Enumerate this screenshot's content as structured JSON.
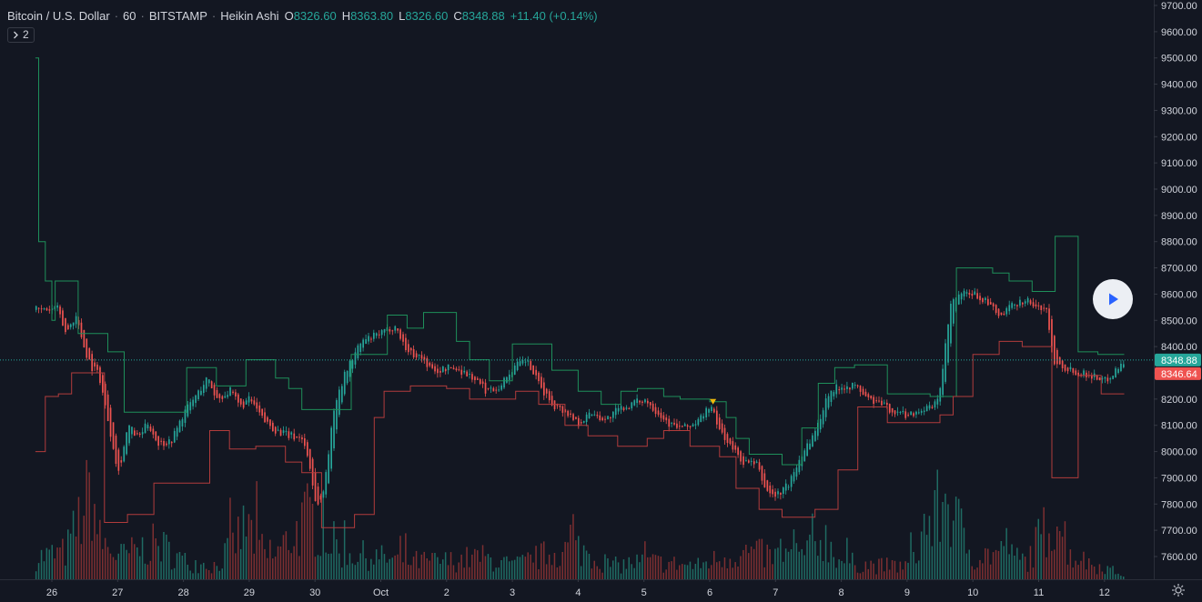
{
  "legend": {
    "symbol": "Bitcoin / U.S. Dollar",
    "interval": "60",
    "exchange": "BITSTAMP",
    "chart_style": "Heikin Ashi",
    "open_key": "O",
    "open": "8326.60",
    "high_key": "H",
    "high": "8363.80",
    "low_key": "L",
    "low": "8326.60",
    "close_key": "C",
    "close": "8348.88",
    "change": "+11.40 (+0.14%)"
  },
  "indicators": {
    "count": "2"
  },
  "icons": {
    "collapse": "chevron-right-icon",
    "play": "play-icon",
    "settings": "settings-icon"
  },
  "colors": {
    "background": "#131722",
    "up": "#26a69a",
    "down": "#ef5350",
    "upper_band": "#1e8f5a",
    "lower_band": "#b23c3c",
    "vol_up": "#1f6b63",
    "vol_down": "#7d2f31",
    "axis_text": "#d1d4dc",
    "marker": "#f0b90b"
  },
  "chart_data": {
    "type": "candlestick",
    "xaxis": {
      "ticks": [
        "26",
        "27",
        "28",
        "29",
        "30",
        "Oct",
        "2",
        "3",
        "4",
        "5",
        "6",
        "7",
        "8",
        "9",
        "10",
        "11",
        "12"
      ]
    },
    "yaxis": {
      "ticks": [
        "9700.00",
        "9600.00",
        "9500.00",
        "9400.00",
        "9300.00",
        "9200.00",
        "9100.00",
        "9000.00",
        "8900.00",
        "8800.00",
        "8700.00",
        "8600.00",
        "8500.00",
        "8400.00",
        "8300.00",
        "8200.00",
        "8100.00",
        "8000.00",
        "7900.00",
        "7800.00",
        "7700.00",
        "7600.00"
      ],
      "range": [
        7555,
        9705
      ]
    },
    "last_price": "8348.88",
    "indicator_price": "8346.64",
    "series": [
      {
        "style": "heikin-ashi",
        "anchors": [
          [
            "26",
            8540
          ],
          [
            26.05,
            8560
          ],
          [
            26.2,
            8450
          ],
          [
            26.35,
            8520
          ],
          [
            26.5,
            8380
          ],
          [
            26.6,
            8320
          ],
          [
            26.7,
            8300
          ],
          [
            "27",
            7920
          ],
          [
            27.15,
            8100
          ],
          [
            27.3,
            8050
          ],
          [
            27.45,
            8110
          ],
          [
            27.6,
            8030
          ],
          [
            27.8,
            8040
          ],
          [
            "28",
            8150
          ],
          [
            28.2,
            8220
          ],
          [
            28.35,
            8280
          ],
          [
            28.5,
            8200
          ],
          [
            28.7,
            8230
          ],
          [
            28.85,
            8170
          ],
          [
            "29",
            8200
          ],
          [
            29.2,
            8120
          ],
          [
            29.4,
            8080
          ],
          [
            29.6,
            8060
          ],
          [
            29.8,
            8050
          ],
          [
            29.9,
            7960
          ],
          [
            "30",
            7800
          ],
          [
            30.1,
            7820
          ],
          [
            30.3,
            8200
          ],
          [
            30.5,
            8330
          ],
          [
            30.7,
            8420
          ],
          [
            "Oct",
            8450
          ],
          [
            31.2,
            8480
          ],
          [
            31.4,
            8380
          ],
          [
            31.6,
            8360
          ],
          [
            31.8,
            8300
          ],
          [
            "2",
            8320
          ],
          [
            32.2,
            8310
          ],
          [
            32.4,
            8280
          ],
          [
            32.6,
            8230
          ],
          [
            32.8,
            8250
          ],
          [
            "3",
            8320
          ],
          [
            33.2,
            8350
          ],
          [
            33.4,
            8250
          ],
          [
            33.6,
            8180
          ],
          [
            33.8,
            8150
          ],
          [
            "4",
            8110
          ],
          [
            34.2,
            8150
          ],
          [
            34.4,
            8120
          ],
          [
            34.6,
            8160
          ],
          [
            34.8,
            8180
          ],
          [
            "5",
            8200
          ],
          [
            35.2,
            8150
          ],
          [
            35.4,
            8100
          ],
          [
            35.6,
            8090
          ],
          [
            35.8,
            8110
          ],
          [
            "6",
            8180
          ],
          [
            36.1,
            8100
          ],
          [
            36.3,
            8020
          ],
          [
            36.5,
            7960
          ],
          [
            36.7,
            7950
          ],
          [
            36.85,
            7850
          ],
          [
            "7",
            7830
          ],
          [
            37.2,
            7880
          ],
          [
            37.4,
            8000
          ],
          [
            37.6,
            8080
          ],
          [
            37.8,
            8230
          ],
          [
            "8",
            8250
          ],
          [
            38.2,
            8250
          ],
          [
            38.4,
            8200
          ],
          [
            38.6,
            8180
          ],
          [
            38.8,
            8150
          ],
          [
            "9",
            8140
          ],
          [
            39.2,
            8160
          ],
          [
            39.4,
            8170
          ],
          [
            39.5,
            8250
          ],
          [
            39.65,
            8560
          ],
          [
            39.8,
            8600
          ],
          [
            "10",
            8600
          ],
          [
            40.2,
            8570
          ],
          [
            40.4,
            8510
          ],
          [
            40.6,
            8560
          ],
          [
            40.8,
            8580
          ],
          [
            "11",
            8540
          ],
          [
            41.1,
            8560
          ],
          [
            41.2,
            8350
          ],
          [
            41.4,
            8320
          ],
          [
            41.6,
            8300
          ],
          [
            41.8,
            8290
          ],
          [
            "12",
            8270
          ],
          [
            42.3,
            8349
          ]
        ]
      },
      {
        "name": "",
        "style": "upper-band",
        "steps": [
          [
            25.75,
            9500
          ],
          [
            25.8,
            8800
          ],
          [
            25.9,
            8650
          ],
          [
            26.0,
            8500
          ],
          [
            26.05,
            8650
          ],
          [
            26.4,
            8450
          ],
          [
            26.65,
            8450
          ],
          [
            26.85,
            8380
          ],
          [
            27.1,
            8150
          ],
          [
            27.9,
            8150
          ],
          [
            28.05,
            8320
          ],
          [
            28.3,
            8320
          ],
          [
            28.5,
            8250
          ],
          [
            28.95,
            8350
          ],
          [
            29.4,
            8280
          ],
          [
            29.6,
            8240
          ],
          [
            29.8,
            8160
          ],
          [
            30.55,
            8370
          ],
          [
            31.1,
            8520
          ],
          [
            31.4,
            8470
          ],
          [
            31.65,
            8530
          ],
          [
            32.15,
            8420
          ],
          [
            32.35,
            8350
          ],
          [
            32.65,
            8270
          ],
          [
            33.0,
            8410
          ],
          [
            33.6,
            8310
          ],
          [
            34.0,
            8230
          ],
          [
            34.35,
            8180
          ],
          [
            34.65,
            8230
          ],
          [
            34.9,
            8240
          ],
          [
            35.3,
            8210
          ],
          [
            35.55,
            8200
          ],
          [
            36.0,
            8190
          ],
          [
            36.25,
            8130
          ],
          [
            36.4,
            8050
          ],
          [
            36.6,
            7990
          ],
          [
            37.1,
            7950
          ],
          [
            37.4,
            8090
          ],
          [
            37.65,
            8260
          ],
          [
            37.9,
            8320
          ],
          [
            38.2,
            8330
          ],
          [
            38.7,
            8220
          ],
          [
            39.35,
            8210
          ],
          [
            39.75,
            8700
          ],
          [
            40.3,
            8680
          ],
          [
            40.55,
            8650
          ],
          [
            40.9,
            8610
          ],
          [
            41.25,
            8820
          ],
          [
            41.6,
            8380
          ],
          [
            41.9,
            8370
          ],
          [
            42.3,
            8370
          ]
        ]
      },
      {
        "name": "",
        "style": "lower-band",
        "steps": [
          [
            25.75,
            8000
          ],
          [
            25.9,
            8210
          ],
          [
            26.1,
            8220
          ],
          [
            26.3,
            8300
          ],
          [
            26.8,
            7730
          ],
          [
            27.15,
            7760
          ],
          [
            27.55,
            7880
          ],
          [
            28.1,
            7880
          ],
          [
            28.4,
            8080
          ],
          [
            28.7,
            8010
          ],
          [
            29.1,
            8020
          ],
          [
            29.55,
            7960
          ],
          [
            29.8,
            7920
          ],
          [
            30.1,
            7710
          ],
          [
            30.6,
            7760
          ],
          [
            30.9,
            8130
          ],
          [
            31.05,
            8230
          ],
          [
            31.45,
            8250
          ],
          [
            32.0,
            8240
          ],
          [
            32.35,
            8200
          ],
          [
            32.75,
            8200
          ],
          [
            33.05,
            8230
          ],
          [
            33.4,
            8180
          ],
          [
            33.8,
            8100
          ],
          [
            34.15,
            8060
          ],
          [
            34.6,
            8020
          ],
          [
            35.05,
            8050
          ],
          [
            35.3,
            8080
          ],
          [
            35.7,
            8020
          ],
          [
            36.15,
            7980
          ],
          [
            36.4,
            7860
          ],
          [
            36.75,
            7780
          ],
          [
            37.1,
            7750
          ],
          [
            37.6,
            7780
          ],
          [
            37.95,
            7930
          ],
          [
            38.25,
            8170
          ],
          [
            38.7,
            8110
          ],
          [
            39.5,
            8140
          ],
          [
            39.7,
            8210
          ],
          [
            40.0,
            8370
          ],
          [
            40.4,
            8420
          ],
          [
            40.75,
            8400
          ],
          [
            41.2,
            7900
          ],
          [
            41.6,
            8290
          ],
          [
            41.95,
            8220
          ],
          [
            42.3,
            8220
          ]
        ]
      },
      {
        "style": "volume",
        "anchors": [
          [
            25.8,
            0.25
          ],
          [
            26.2,
            0.3
          ],
          [
            26.6,
            1.0
          ],
          [
            26.7,
            0.45
          ],
          [
            27.0,
            0.25
          ],
          [
            27.4,
            0.35
          ],
          [
            27.6,
            0.4
          ],
          [
            28.0,
            0.2
          ],
          [
            28.5,
            0.15
          ],
          [
            28.95,
            0.6
          ],
          [
            29.3,
            0.2
          ],
          [
            29.9,
            0.7
          ],
          [
            30.4,
            0.3
          ],
          [
            30.9,
            0.25
          ],
          [
            31.4,
            0.2
          ],
          [
            32.0,
            0.2
          ],
          [
            32.5,
            0.25
          ],
          [
            33.0,
            0.15
          ],
          [
            33.6,
            0.3
          ],
          [
            34.0,
            0.35
          ],
          [
            34.5,
            0.15
          ],
          [
            35.0,
            0.2
          ],
          [
            35.8,
            0.15
          ],
          [
            36.2,
            0.25
          ],
          [
            36.6,
            0.3
          ],
          [
            37.0,
            0.25
          ],
          [
            37.5,
            0.3
          ],
          [
            37.7,
            0.5
          ],
          [
            38.0,
            0.2
          ],
          [
            38.5,
            0.15
          ],
          [
            39.0,
            0.15
          ],
          [
            39.6,
            0.95
          ],
          [
            39.7,
            0.7
          ],
          [
            40.0,
            0.25
          ],
          [
            40.4,
            0.3
          ],
          [
            40.8,
            0.2
          ],
          [
            41.25,
            0.75
          ],
          [
            41.5,
            0.25
          ],
          [
            42.3,
            0.05
          ]
        ]
      }
    ],
    "markers": [
      {
        "x": 36.05,
        "y": 8190,
        "shape": "triangle-down"
      }
    ],
    "grid": false,
    "legend": "top-left"
  }
}
